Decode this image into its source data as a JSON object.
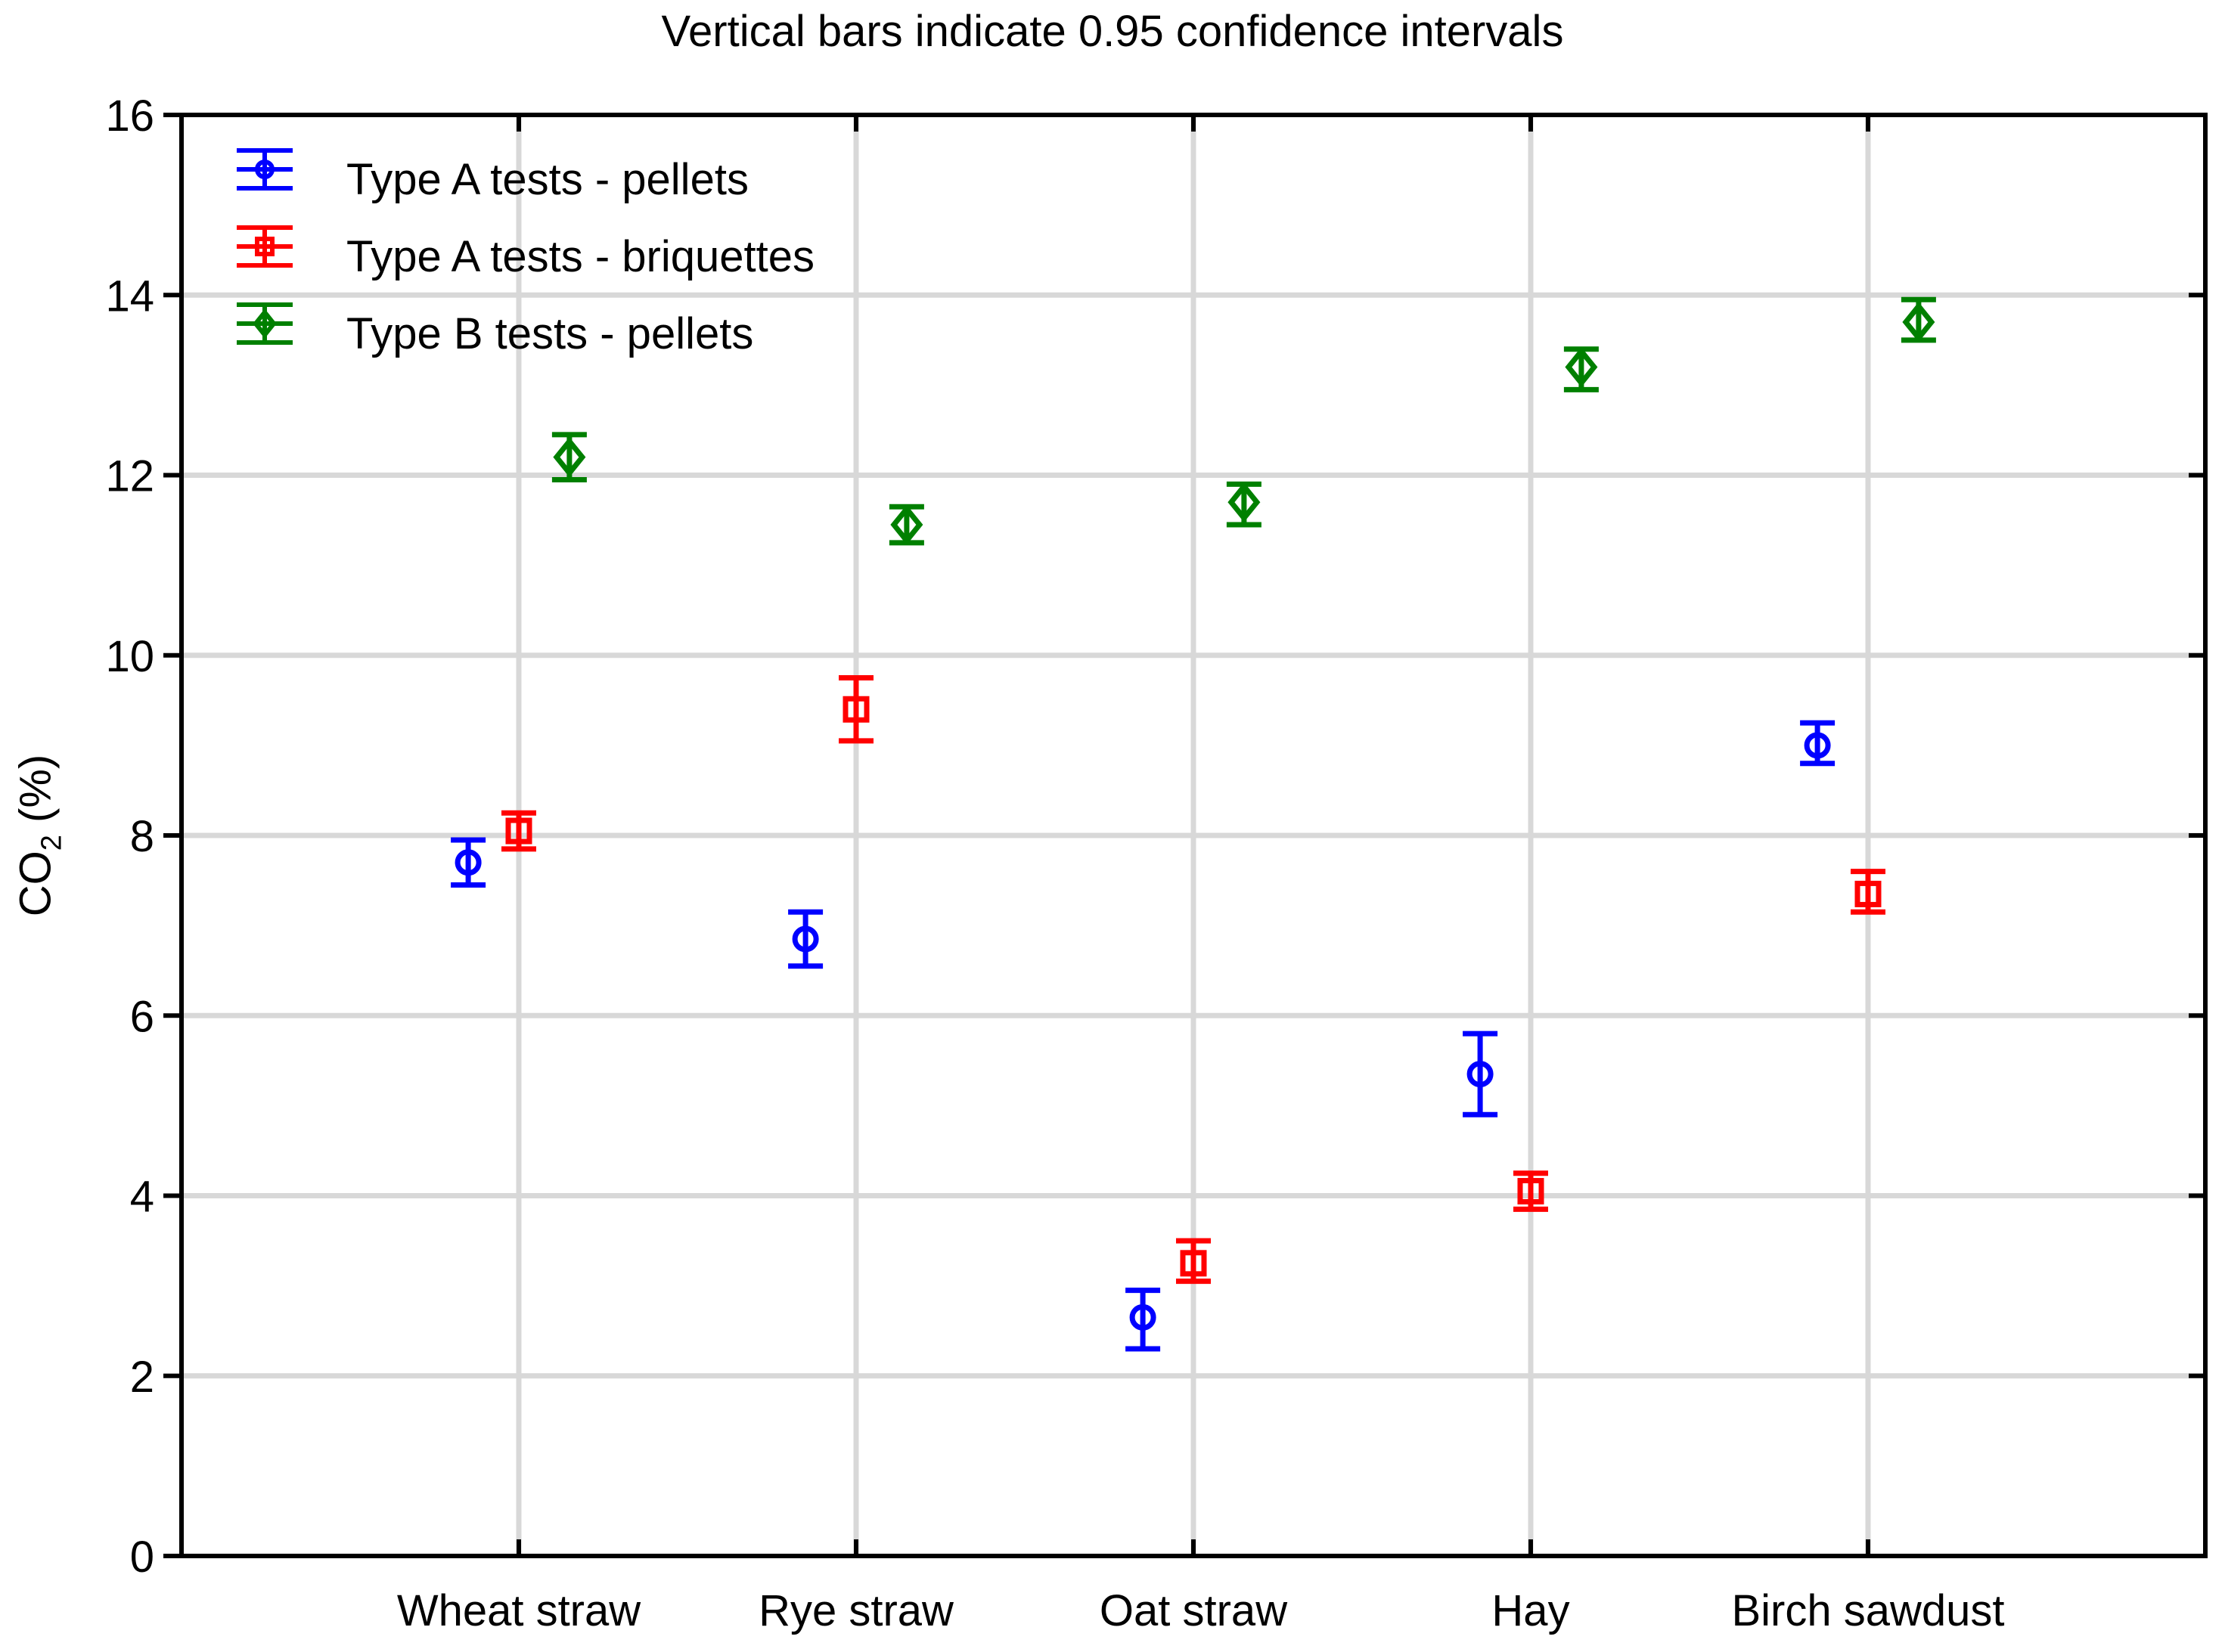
{
  "title": "Vertical bars indicate 0.95 confidence intervals",
  "y_axis": {
    "label_co": "CO",
    "label_sub": "2",
    "label_pct": " (%)",
    "min": 0,
    "max": 16,
    "tick_step": 2,
    "tick_labels": [
      "0",
      "2",
      "4",
      "6",
      "8",
      "10",
      "12",
      "14",
      "16"
    ]
  },
  "x_axis": {
    "categories": [
      "Wheat straw",
      "Rye straw",
      "Oat straw",
      "Hay",
      "Birch sawdust"
    ]
  },
  "legend": {
    "items": [
      {
        "label": "Type A tests - pellets",
        "marker": "circle",
        "color": "#0000ff"
      },
      {
        "label": "Type A tests - briquettes",
        "marker": "square",
        "color": "#ff0000"
      },
      {
        "label": "Type B tests - pellets",
        "marker": "diamond",
        "color": "#008000"
      }
    ]
  },
  "colors": {
    "background": "#ffffff",
    "axis": "#000000",
    "grid": "#d8d8d8",
    "series_a_pellets": "#0000ff",
    "series_a_briquettes": "#ff0000",
    "series_b_pellets": "#008000"
  },
  "chart_data": {
    "type": "scatter",
    "title": "Vertical bars indicate 0.95 confidence intervals",
    "ylabel": "CO2 (%)",
    "ylim": [
      0,
      16
    ],
    "y_ticks": [
      0,
      2,
      4,
      6,
      8,
      10,
      12,
      14,
      16
    ],
    "grid": true,
    "legend_position": "top-left-inside",
    "error_bars": "0.95 confidence intervals",
    "categories": [
      "Wheat straw",
      "Rye straw",
      "Oat straw",
      "Hay",
      "Birch sawdust"
    ],
    "series": [
      {
        "name": "Type A tests - pellets",
        "marker": "circle",
        "color": "#0000ff",
        "values": [
          7.7,
          6.85,
          2.65,
          5.35,
          9.0
        ],
        "ci_low": [
          7.45,
          6.55,
          2.3,
          4.9,
          8.8
        ],
        "ci_high": [
          7.95,
          7.15,
          2.95,
          5.8,
          9.25
        ]
      },
      {
        "name": "Type A tests - briquettes",
        "marker": "square",
        "color": "#ff0000",
        "values": [
          8.05,
          9.4,
          3.25,
          4.05,
          7.35
        ],
        "ci_low": [
          7.85,
          9.05,
          3.05,
          3.85,
          7.15
        ],
        "ci_high": [
          8.25,
          9.75,
          3.5,
          4.25,
          7.6
        ]
      },
      {
        "name": "Type B tests - pellets",
        "marker": "diamond",
        "color": "#008000",
        "values": [
          12.2,
          11.45,
          11.7,
          13.2,
          13.7
        ],
        "ci_low": [
          11.95,
          11.25,
          11.45,
          12.95,
          13.5
        ],
        "ci_high": [
          12.45,
          11.65,
          11.9,
          13.4,
          13.95
        ]
      }
    ]
  }
}
